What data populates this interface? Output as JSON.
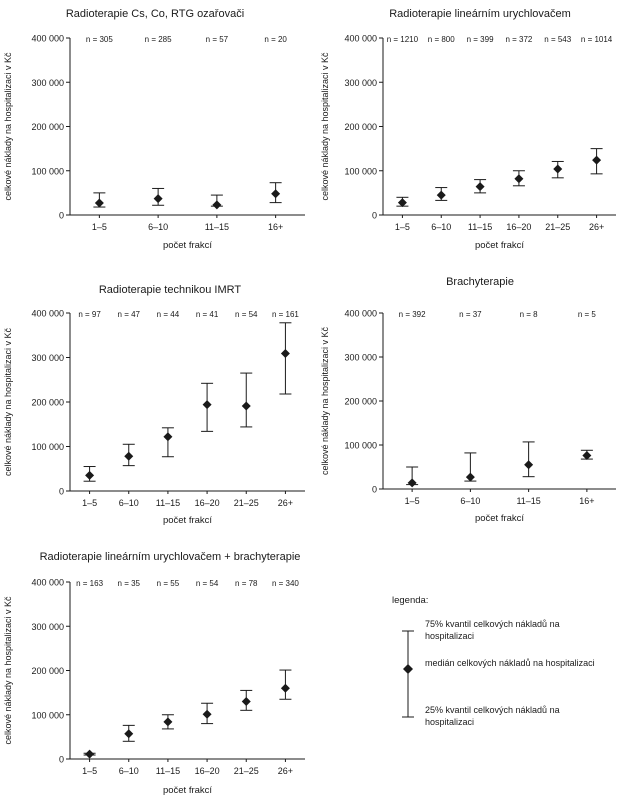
{
  "common": {
    "ylabel": "celkové náklady na hospitalizaci v Kč",
    "xlabel": "počet frakcí",
    "yticks": [
      0,
      100000,
      200000,
      300000,
      400000
    ]
  },
  "chart_data": [
    {
      "type": "scatter",
      "title": "Radioterapie Cs, Co, RTG ozařovači",
      "categories": [
        "1–5",
        "6–10",
        "11–15",
        "16+"
      ],
      "n_labels": [
        "n =  305",
        "n = 285",
        "n = 57",
        "n = 20"
      ],
      "series": [
        {
          "name": "medián",
          "values": [
            27000,
            37000,
            23000,
            48000
          ]
        },
        {
          "name": "25% kvantil",
          "values": [
            18000,
            22000,
            20000,
            28000
          ]
        },
        {
          "name": "75% kvantil",
          "values": [
            50000,
            60000,
            45000,
            73000
          ]
        }
      ],
      "ylim": [
        0,
        400000
      ],
      "xlabel": "počet frakcí",
      "ylabel": "celkové náklady na hospitalizaci v Kč"
    },
    {
      "type": "scatter",
      "title": "Radioterapie lineárním urychlovačem",
      "categories": [
        "1–5",
        "6–10",
        "11–15",
        "16–20",
        "21–25",
        "26+"
      ],
      "n_labels": [
        "n = 1210",
        "n = 800",
        "n = 399",
        "n = 372",
        "n = 543",
        "n = 1014"
      ],
      "series": [
        {
          "name": "medián",
          "values": [
            28000,
            45000,
            64000,
            82000,
            104000,
            124000
          ]
        },
        {
          "name": "25% kvantil",
          "values": [
            20000,
            33000,
            50000,
            66000,
            84000,
            93000
          ]
        },
        {
          "name": "75% kvantil",
          "values": [
            40000,
            62000,
            80000,
            100000,
            121000,
            150000
          ]
        }
      ],
      "ylim": [
        0,
        400000
      ],
      "xlabel": "počet frakcí",
      "ylabel": "celkové náklady na hospitalizaci v Kč"
    },
    {
      "type": "scatter",
      "title": "Radioterapie technikou IMRT",
      "categories": [
        "1–5",
        "6–10",
        "11–15",
        "16–20",
        "21–25",
        "26+"
      ],
      "n_labels": [
        "n = 97",
        "n = 47",
        "n = 44",
        "n = 41",
        "n = 54",
        "n = 161"
      ],
      "series": [
        {
          "name": "medián",
          "values": [
            35000,
            78000,
            122000,
            194000,
            191000,
            309000
          ]
        },
        {
          "name": "25% kvantil",
          "values": [
            22000,
            57000,
            77000,
            134000,
            144000,
            218000
          ]
        },
        {
          "name": "75% kvantil",
          "values": [
            55000,
            105000,
            142000,
            242000,
            265000,
            378000
          ]
        }
      ],
      "ylim": [
        0,
        400000
      ],
      "xlabel": "počet frakcí",
      "ylabel": "celkové náklady na hospitalizaci v Kč"
    },
    {
      "type": "scatter",
      "title": "Brachyterapie",
      "categories": [
        "1–5",
        "6–10",
        "11–15",
        "16+"
      ],
      "n_labels": [
        "n = 392",
        "n = 37",
        "n = 8",
        "n = 5"
      ],
      "series": [
        {
          "name": "medián",
          "values": [
            14000,
            27000,
            55000,
            76000
          ]
        },
        {
          "name": "25% kvantil",
          "values": [
            10000,
            18000,
            28000,
            68000
          ]
        },
        {
          "name": "75% kvantil",
          "values": [
            50000,
            82000,
            107000,
            88000
          ]
        }
      ],
      "ylim": [
        0,
        400000
      ],
      "xlabel": "počet frakcí",
      "ylabel": "celkové náklady na hospitalizaci v Kč"
    },
    {
      "type": "scatter",
      "title": "Radioterapie lineárním urychlovačem + brachyterapie",
      "categories": [
        "1–5",
        "6–10",
        "11–15",
        "16–20",
        "21–25",
        "26+"
      ],
      "n_labels": [
        "n = 163",
        "n = 35",
        "n = 55",
        "n = 54",
        "n = 78",
        "n = 340"
      ],
      "series": [
        {
          "name": "medián",
          "values": [
            11000,
            57000,
            84000,
            101000,
            130000,
            160000
          ]
        },
        {
          "name": "25% kvantil",
          "values": [
            9000,
            40000,
            68000,
            80000,
            110000,
            135000
          ]
        },
        {
          "name": "75% kvantil",
          "values": [
            13000,
            76000,
            100000,
            126000,
            155000,
            201000
          ]
        }
      ],
      "ylim": [
        0,
        400000
      ],
      "xlabel": "počet frakcí",
      "ylabel": "celkové náklady na hospitalizaci v Kč"
    }
  ],
  "legend": {
    "title": "legenda:",
    "upper": "75% kvantil celkových nákladů na hospitalizaci",
    "median": "medián celkových nákladů na hospitalizaci",
    "lower": "25% kvantil celkových nákladů na hospitalizaci"
  }
}
